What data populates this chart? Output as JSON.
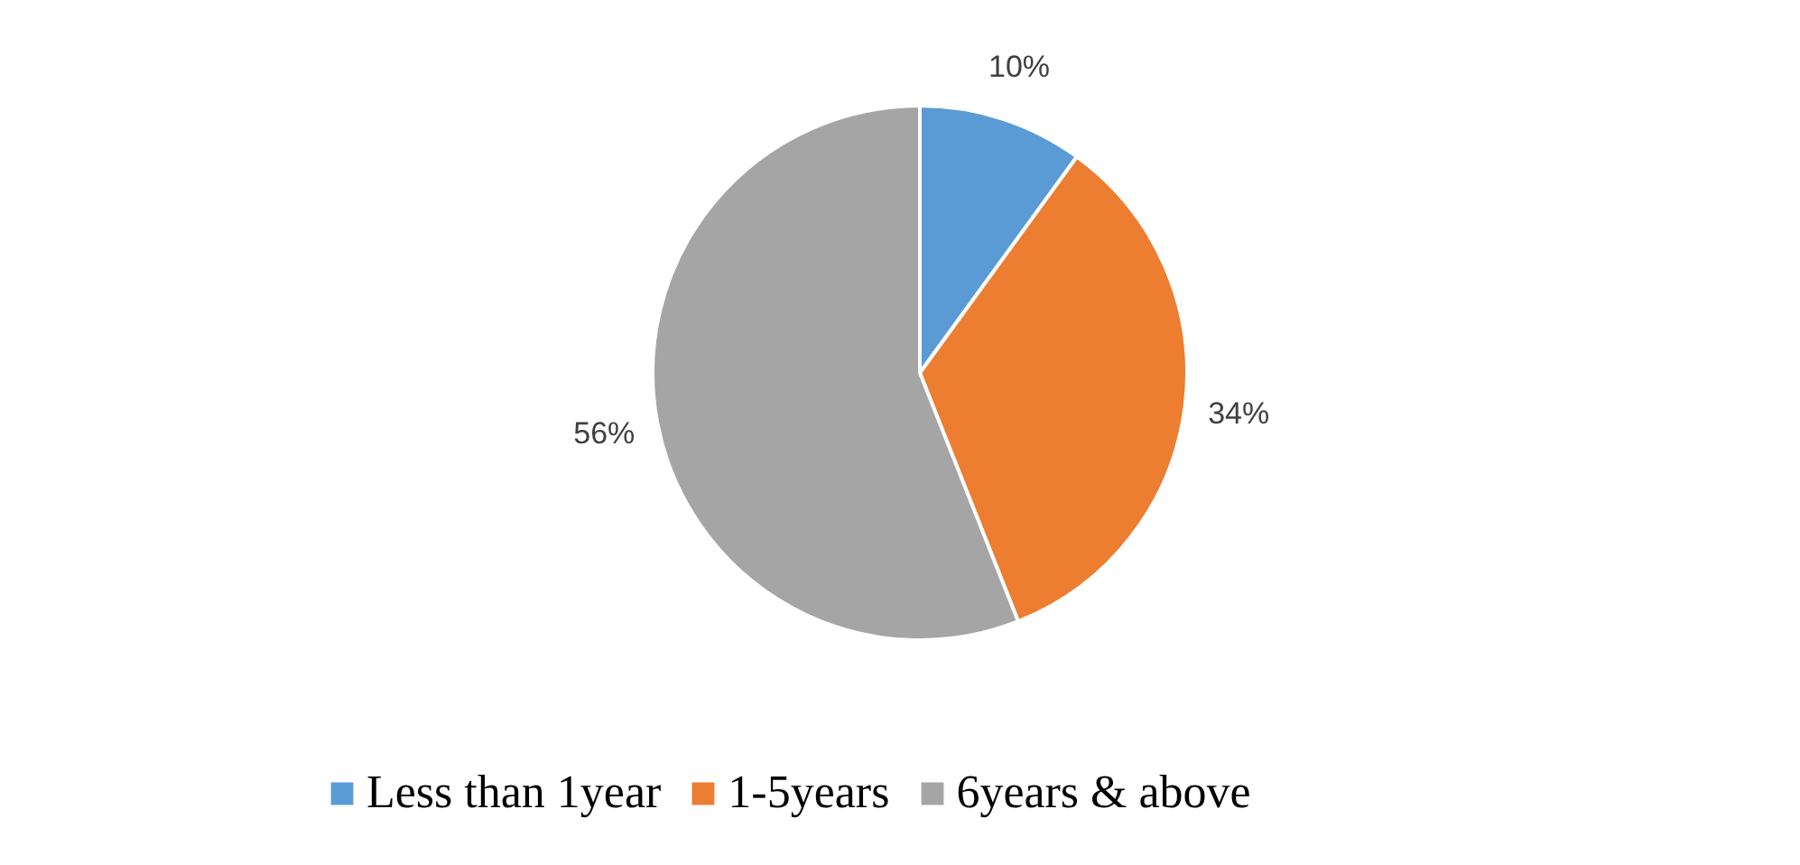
{
  "chart_data": {
    "type": "pie",
    "categories": [
      "Less than 1year",
      "1-5years",
      "6years & above"
    ],
    "values": [
      10,
      34,
      56
    ],
    "colors": [
      "#5b9bd5",
      "#ed7d31",
      "#a5a5a5"
    ],
    "value_labels": [
      "10%",
      "34%",
      "56%"
    ],
    "legend": "bottom"
  }
}
